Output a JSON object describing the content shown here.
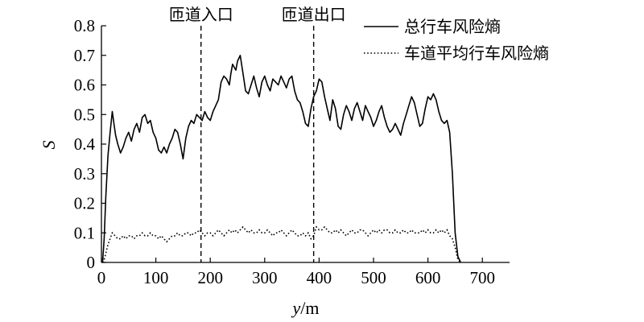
{
  "chart_data": {
    "type": "line",
    "xlabel": "y/m",
    "ylabel": "S",
    "xlim": [
      0,
      750
    ],
    "ylim": [
      0,
      0.8
    ],
    "xticks": [
      "0",
      "100",
      "200",
      "300",
      "400",
      "500",
      "600",
      "700"
    ],
    "xtick_values": [
      0,
      100,
      200,
      300,
      400,
      500,
      600,
      700
    ],
    "yticks": [
      "0",
      "0.1",
      "0.2",
      "0.3",
      "0.4",
      "0.5",
      "0.6",
      "0.7",
      "0.8"
    ],
    "ytick_values": [
      0,
      0.1,
      0.2,
      0.3,
      0.4,
      0.5,
      0.6,
      0.7,
      0.8
    ],
    "legend_position": "top-right",
    "grid": false,
    "annotations": [
      {
        "label": "匝道入口",
        "x": 183
      },
      {
        "label": "匝道出口",
        "x": 390
      }
    ],
    "series": [
      {
        "name": "总行车风险熵",
        "style": "solid",
        "x": [
          2,
          5,
          8,
          12,
          16,
          20,
          23,
          26,
          30,
          35,
          40,
          45,
          50,
          55,
          60,
          65,
          70,
          75,
          80,
          85,
          90,
          95,
          100,
          105,
          110,
          115,
          120,
          125,
          130,
          135,
          140,
          145,
          150,
          155,
          160,
          165,
          170,
          175,
          180,
          185,
          190,
          195,
          200,
          205,
          210,
          215,
          220,
          225,
          230,
          235,
          238,
          241,
          244,
          247,
          250,
          255,
          260,
          265,
          270,
          275,
          280,
          285,
          290,
          295,
          300,
          305,
          310,
          315,
          320,
          325,
          330,
          335,
          340,
          345,
          350,
          355,
          360,
          365,
          370,
          375,
          380,
          385,
          390,
          395,
          400,
          405,
          410,
          415,
          420,
          425,
          430,
          435,
          440,
          445,
          450,
          455,
          460,
          465,
          470,
          475,
          480,
          485,
          490,
          495,
          500,
          505,
          510,
          515,
          520,
          525,
          530,
          535,
          540,
          545,
          550,
          555,
          560,
          565,
          570,
          575,
          580,
          585,
          590,
          595,
          600,
          605,
          610,
          615,
          620,
          625,
          630,
          635,
          640,
          645,
          650,
          655,
          660
        ],
        "y": [
          0.0,
          0.08,
          0.22,
          0.36,
          0.44,
          0.51,
          0.47,
          0.43,
          0.4,
          0.37,
          0.39,
          0.42,
          0.44,
          0.41,
          0.45,
          0.47,
          0.44,
          0.49,
          0.5,
          0.47,
          0.48,
          0.44,
          0.42,
          0.38,
          0.37,
          0.39,
          0.37,
          0.4,
          0.42,
          0.45,
          0.44,
          0.4,
          0.35,
          0.42,
          0.46,
          0.48,
          0.47,
          0.5,
          0.49,
          0.48,
          0.51,
          0.49,
          0.48,
          0.51,
          0.53,
          0.55,
          0.61,
          0.63,
          0.62,
          0.6,
          0.64,
          0.67,
          0.66,
          0.65,
          0.68,
          0.7,
          0.64,
          0.58,
          0.57,
          0.6,
          0.63,
          0.59,
          0.56,
          0.61,
          0.63,
          0.6,
          0.58,
          0.62,
          0.61,
          0.6,
          0.63,
          0.61,
          0.59,
          0.62,
          0.63,
          0.58,
          0.55,
          0.54,
          0.51,
          0.47,
          0.46,
          0.52,
          0.56,
          0.58,
          0.62,
          0.61,
          0.56,
          0.52,
          0.48,
          0.55,
          0.52,
          0.46,
          0.45,
          0.5,
          0.53,
          0.51,
          0.48,
          0.52,
          0.54,
          0.51,
          0.48,
          0.53,
          0.51,
          0.49,
          0.46,
          0.48,
          0.51,
          0.53,
          0.49,
          0.46,
          0.44,
          0.45,
          0.47,
          0.45,
          0.43,
          0.47,
          0.5,
          0.53,
          0.56,
          0.54,
          0.5,
          0.46,
          0.47,
          0.52,
          0.56,
          0.55,
          0.57,
          0.55,
          0.51,
          0.48,
          0.47,
          0.48,
          0.44,
          0.3,
          0.1,
          0.02,
          0.0
        ]
      },
      {
        "name": "车道平均行车风险熵",
        "style": "dotted",
        "x": [
          2,
          5,
          8,
          12,
          16,
          20,
          25,
          30,
          35,
          40,
          45,
          50,
          55,
          60,
          65,
          70,
          75,
          80,
          85,
          90,
          95,
          100,
          105,
          110,
          115,
          120,
          125,
          130,
          135,
          140,
          145,
          150,
          155,
          160,
          165,
          170,
          175,
          180,
          185,
          190,
          195,
          200,
          205,
          210,
          215,
          220,
          225,
          230,
          235,
          240,
          245,
          250,
          255,
          260,
          265,
          270,
          275,
          280,
          285,
          290,
          295,
          300,
          305,
          310,
          315,
          320,
          325,
          330,
          335,
          340,
          345,
          350,
          355,
          360,
          365,
          370,
          375,
          380,
          385,
          390,
          395,
          400,
          405,
          410,
          415,
          420,
          425,
          430,
          435,
          440,
          445,
          450,
          455,
          460,
          465,
          470,
          475,
          480,
          485,
          490,
          495,
          500,
          505,
          510,
          515,
          520,
          525,
          530,
          535,
          540,
          545,
          550,
          555,
          560,
          565,
          570,
          575,
          580,
          585,
          590,
          595,
          600,
          605,
          610,
          615,
          620,
          625,
          630,
          635,
          640,
          645,
          650,
          655,
          660
        ],
        "y": [
          0.0,
          0.01,
          0.03,
          0.06,
          0.08,
          0.1,
          0.09,
          0.08,
          0.08,
          0.09,
          0.08,
          0.09,
          0.09,
          0.08,
          0.09,
          0.09,
          0.1,
          0.09,
          0.09,
          0.1,
          0.09,
          0.09,
          0.08,
          0.09,
          0.08,
          0.07,
          0.08,
          0.09,
          0.09,
          0.1,
          0.09,
          0.09,
          0.1,
          0.1,
          0.09,
          0.1,
          0.1,
          0.11,
          0.1,
          0.09,
          0.1,
          0.1,
          0.09,
          0.1,
          0.11,
          0.1,
          0.09,
          0.1,
          0.11,
          0.1,
          0.11,
          0.1,
          0.11,
          0.12,
          0.11,
          0.1,
          0.11,
          0.1,
          0.1,
          0.11,
          0.1,
          0.1,
          0.11,
          0.1,
          0.09,
          0.1,
          0.1,
          0.11,
          0.1,
          0.09,
          0.1,
          0.11,
          0.1,
          0.09,
          0.09,
          0.1,
          0.09,
          0.1,
          0.08,
          0.09,
          0.12,
          0.11,
          0.11,
          0.12,
          0.11,
          0.1,
          0.1,
          0.11,
          0.1,
          0.11,
          0.1,
          0.09,
          0.1,
          0.11,
          0.1,
          0.1,
          0.11,
          0.11,
          0.1,
          0.09,
          0.1,
          0.11,
          0.1,
          0.11,
          0.1,
          0.11,
          0.11,
          0.1,
          0.1,
          0.11,
          0.1,
          0.1,
          0.11,
          0.1,
          0.1,
          0.11,
          0.1,
          0.1,
          0.1,
          0.11,
          0.1,
          0.11,
          0.1,
          0.1,
          0.11,
          0.1,
          0.11,
          0.1,
          0.11,
          0.09,
          0.08,
          0.05,
          0.01,
          0.0
        ]
      }
    ]
  }
}
